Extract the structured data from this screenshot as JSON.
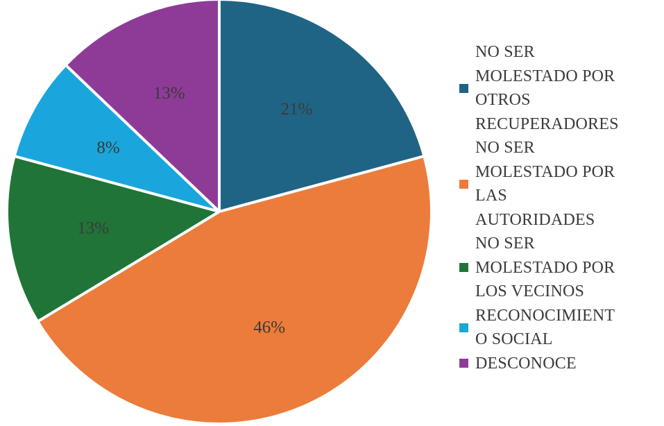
{
  "chart_data": {
    "type": "pie",
    "start_angle_deg": 0,
    "direction": "clockwise",
    "slices": [
      {
        "label_lines": [
          "NO SER",
          "MOLESTADO POR",
          "OTROS",
          "RECUPERADORES"
        ],
        "value": 21,
        "value_label": "21%",
        "color": "#1f6485"
      },
      {
        "label_lines": [
          "NO SER",
          "MOLESTADO POR",
          "LAS",
          "AUTORIDADES"
        ],
        "value": 46,
        "value_label": "46%",
        "color": "#ec7c3b"
      },
      {
        "label_lines": [
          "NO SER",
          "MOLESTADO POR",
          "LOS VECINOS"
        ],
        "value": 13,
        "value_label": "13%",
        "color": "#207437"
      },
      {
        "label_lines": [
          "RECONOCIMIENT",
          "O SOCIAL"
        ],
        "value": 8,
        "value_label": "8%",
        "color": "#1aa6dc"
      },
      {
        "label_lines": [
          "DESCONOCE"
        ],
        "value": 13,
        "value_label": "13%",
        "color": "#8e3b98"
      }
    ],
    "legend_position": "right"
  }
}
